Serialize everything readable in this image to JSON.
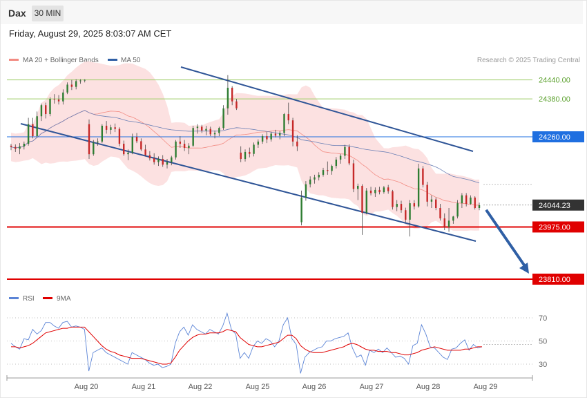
{
  "header": {
    "symbol": "Dax",
    "timeframe": "30 MIN",
    "datetime": "Friday, August 29, 2025 8:03:07 AM CET"
  },
  "legend": {
    "items": [
      {
        "label": "MA 20 + Bollinger Bands",
        "color": "#f28b82"
      },
      {
        "label": "MA 50",
        "color": "#2f5fa5"
      }
    ],
    "copyright": "Research © 2025 Trading Central"
  },
  "rsi_legend": {
    "items": [
      {
        "label": "RSI",
        "color": "#5b84d6"
      },
      {
        "label": "9MA",
        "color": "#e00000"
      }
    ]
  },
  "chart_data": [
    {
      "type": "candlestick",
      "x_ticks": [
        "Aug 20",
        "Aug 21",
        "Aug 22",
        "Aug 25",
        "Aug 26",
        "Aug 27",
        "Aug 28",
        "Aug 29"
      ],
      "price_levels": [
        {
          "value": 24440.0,
          "label": "24440.00",
          "color": "#9ccc65",
          "kind": "thin"
        },
        {
          "value": 24380.0,
          "label": "24380.00",
          "color": "#9ccc65",
          "kind": "thin"
        },
        {
          "value": 24260.0,
          "label": "24260.00",
          "color": "#1f6fe0",
          "kind": "blue"
        },
        {
          "value": 24044.23,
          "label": "24044.23",
          "color": "#333333",
          "kind": "current"
        },
        {
          "value": 23975.0,
          "label": "23975.00",
          "color": "#e00000",
          "kind": "red"
        },
        {
          "value": 23810.0,
          "label": "23810.00",
          "color": "#e00000",
          "kind": "red"
        }
      ],
      "channel": {
        "color": "#2f5597"
      },
      "projection_arrow": {
        "from": 24040,
        "to": 23810,
        "color": "#2f5fa5"
      },
      "candles": [
        [
          24232,
          24238,
          24218,
          24228
        ],
        [
          24228,
          24236,
          24212,
          24222
        ],
        [
          24222,
          24240,
          24205,
          24230
        ],
        [
          24230,
          24245,
          24220,
          24238
        ],
        [
          24238,
          24320,
          24232,
          24300
        ],
        [
          24300,
          24320,
          24255,
          24262
        ],
        [
          24262,
          24340,
          24258,
          24325
        ],
        [
          24325,
          24365,
          24310,
          24360
        ],
        [
          24360,
          24368,
          24318,
          24332
        ],
        [
          24332,
          24385,
          24325,
          24380
        ],
        [
          24380,
          24395,
          24365,
          24378
        ],
        [
          24378,
          24392,
          24362,
          24372
        ],
        [
          24372,
          24410,
          24362,
          24400
        ],
        [
          24400,
          24432,
          24395,
          24425
        ],
        [
          24425,
          24440,
          24408,
          24418
        ],
        [
          24418,
          24442,
          24410,
          24436
        ],
        [
          24436,
          24442,
          24428,
          24438
        ],
        [
          24438,
          24442,
          24432,
          24440
        ],
        [
          24300,
          24315,
          24190,
          24205
        ],
        [
          24205,
          24250,
          24200,
          24242
        ],
        [
          24242,
          24255,
          24232,
          24245
        ],
        [
          24245,
          24300,
          24240,
          24295
        ],
        [
          24295,
          24310,
          24270,
          24282
        ],
        [
          24282,
          24298,
          24268,
          24290
        ],
        [
          24290,
          24302,
          24275,
          24285
        ],
        [
          24285,
          24290,
          24230,
          24238
        ],
        [
          24238,
          24248,
          24200,
          24205
        ],
        [
          24205,
          24220,
          24186,
          24210
        ],
        [
          24210,
          24270,
          24205,
          24260
        ],
        [
          24260,
          24272,
          24240,
          24246
        ],
        [
          24246,
          24255,
          24215,
          24220
        ],
        [
          24220,
          24235,
          24198,
          24202
        ],
        [
          24202,
          24215,
          24185,
          24192
        ],
        [
          24192,
          24208,
          24172,
          24180
        ],
        [
          24180,
          24198,
          24168,
          24190
        ],
        [
          24190,
          24202,
          24165,
          24172
        ],
        [
          24172,
          24190,
          24160,
          24180
        ],
        [
          24180,
          24200,
          24170,
          24195
        ],
        [
          24195,
          24250,
          24188,
          24245
        ],
        [
          24245,
          24262,
          24225,
          24238
        ],
        [
          24238,
          24250,
          24215,
          24225
        ],
        [
          24225,
          24240,
          24205,
          24232
        ],
        [
          24232,
          24295,
          24228,
          24288
        ],
        [
          24288,
          24300,
          24270,
          24292
        ],
        [
          24292,
          24298,
          24272,
          24280
        ],
        [
          24280,
          24295,
          24265,
          24285
        ],
        [
          24285,
          24292,
          24262,
          24268
        ],
        [
          24268,
          24280,
          24255,
          24272
        ],
        [
          24272,
          24292,
          24262,
          24288
        ],
        [
          24288,
          24360,
          24282,
          24350
        ],
        [
          24350,
          24455,
          24330,
          24415
        ],
        [
          24415,
          24420,
          24360,
          24372
        ],
        [
          24372,
          24380,
          24345,
          24350
        ],
        [
          24210,
          24230,
          24180,
          24190
        ],
        [
          24190,
          24220,
          24182,
          24212
        ],
        [
          24212,
          24226,
          24195,
          24206
        ],
        [
          24206,
          24242,
          24198,
          24235
        ],
        [
          24235,
          24252,
          24225,
          24245
        ],
        [
          24245,
          24268,
          24238,
          24262
        ],
        [
          24262,
          24275,
          24240,
          24252
        ],
        [
          24252,
          24276,
          24245,
          24270
        ],
        [
          24270,
          24282,
          24258,
          24264
        ],
        [
          24264,
          24278,
          24252,
          24272
        ],
        [
          24272,
          24335,
          24262,
          24332
        ],
        [
          24332,
          24368,
          24300,
          24312
        ],
        [
          24312,
          24320,
          24230,
          24245
        ],
        [
          24245,
          24265,
          24215,
          24230
        ],
        [
          23990,
          24090,
          23980,
          24068
        ],
        [
          24068,
          24120,
          24058,
          24110
        ],
        [
          24110,
          24135,
          24100,
          24125
        ],
        [
          24125,
          24140,
          24112,
          24132
        ],
        [
          24132,
          24148,
          24122,
          24140
        ],
        [
          24140,
          24162,
          24134,
          24155
        ],
        [
          24155,
          24182,
          24140,
          24152
        ],
        [
          24152,
          24172,
          24140,
          24168
        ],
        [
          24168,
          24196,
          24160,
          24188
        ],
        [
          24188,
          24206,
          24175,
          24200
        ],
        [
          24200,
          24235,
          24190,
          24228
        ],
        [
          24228,
          24236,
          24170,
          24176
        ],
        [
          24176,
          24188,
          24085,
          24095
        ],
        [
          24095,
          24112,
          24060,
          24105
        ],
        [
          24105,
          24110,
          23950,
          24020
        ],
        [
          24020,
          24098,
          24015,
          24090
        ],
        [
          24090,
          24102,
          24075,
          24082
        ],
        [
          24082,
          24100,
          24070,
          24092
        ],
        [
          24092,
          24102,
          24078,
          24085
        ],
        [
          24085,
          24105,
          24080,
          24100
        ],
        [
          24100,
          24108,
          24080,
          24088
        ],
        [
          24088,
          24092,
          24030,
          24038
        ],
        [
          24038,
          24060,
          24025,
          24048
        ],
        [
          24048,
          24058,
          24020,
          24028
        ],
        [
          24028,
          24036,
          23990,
          23998
        ],
        [
          23998,
          24060,
          23945,
          24050
        ],
        [
          24050,
          24060,
          24030,
          24040
        ],
        [
          24040,
          24175,
          24036,
          24160
        ],
        [
          24160,
          24168,
          24100,
          24108
        ],
        [
          24108,
          24118,
          24040,
          24055
        ],
        [
          24055,
          24075,
          24035,
          24062
        ],
        [
          24062,
          24068,
          24028,
          24035
        ],
        [
          24035,
          24048,
          23995,
          24002
        ],
        [
          24002,
          24018,
          23965,
          23975
        ],
        [
          23975,
          24035,
          23960,
          23995
        ],
        [
          23995,
          24010,
          23985,
          24008
        ],
        [
          24008,
          24060,
          24002,
          24050
        ],
        [
          24050,
          24082,
          24035,
          24075
        ],
        [
          24075,
          24082,
          24040,
          24048
        ],
        [
          24048,
          24075,
          24045,
          24068
        ],
        [
          24068,
          24072,
          24030,
          24035
        ],
        [
          24035,
          24052,
          24028,
          24044
        ]
      ]
    },
    {
      "type": "line",
      "x_ticks": [
        "Aug 20",
        "Aug 21",
        "Aug 22",
        "Aug 25",
        "Aug 26",
        "Aug 27",
        "Aug 28",
        "Aug 29"
      ],
      "y_ticks": [
        70,
        50,
        30
      ],
      "ylim": [
        17,
        80
      ],
      "grid": "dotted at 30, 50, 70",
      "series": [
        {
          "name": "RSI",
          "color": "#5b84d6",
          "values": [
            48,
            45,
            43,
            52,
            51,
            60,
            56,
            59,
            66,
            66,
            63,
            61,
            66,
            67,
            62,
            63,
            62,
            60,
            24,
            40,
            42,
            44,
            40,
            38,
            36,
            34,
            32,
            30,
            40,
            38,
            36,
            34,
            31,
            29,
            30,
            27,
            28,
            30,
            48,
            58,
            62,
            55,
            64,
            60,
            58,
            56,
            60,
            58,
            56,
            63,
            74,
            60,
            56,
            35,
            40,
            35,
            45,
            50,
            48,
            52,
            50,
            45,
            50,
            64,
            70,
            52,
            47,
            22,
            36,
            40,
            42,
            44,
            45,
            50,
            50,
            52,
            53,
            54,
            57,
            44,
            36,
            38,
            29,
            42,
            40,
            43,
            40,
            44,
            40,
            36,
            37,
            35,
            30,
            46,
            48,
            64,
            56,
            45,
            44,
            40,
            36,
            34,
            43,
            44,
            48,
            51,
            42,
            47,
            44,
            45
          ]
        },
        {
          "name": "9MA",
          "color": "#e00000",
          "values": [
            45,
            45,
            44,
            45,
            46,
            48,
            51,
            54,
            57,
            58,
            59,
            60,
            61,
            61,
            62,
            62,
            62,
            62,
            58,
            54,
            50,
            46,
            43,
            41,
            40,
            38,
            37,
            36,
            35,
            35,
            35,
            34,
            33,
            32,
            31,
            30,
            30,
            31,
            36,
            42,
            46,
            50,
            53,
            55,
            56,
            56,
            57,
            57,
            57,
            58,
            60,
            59,
            58,
            53,
            50,
            47,
            46,
            45,
            45,
            46,
            47,
            48,
            49,
            52,
            55,
            55,
            52,
            46,
            43,
            41,
            40,
            40,
            40,
            41,
            42,
            43,
            44,
            45,
            47,
            48,
            47,
            45,
            43,
            42,
            42,
            41,
            41,
            41,
            40,
            40,
            39,
            38,
            38,
            39,
            40,
            42,
            43,
            44,
            45,
            44,
            43,
            42,
            42,
            42,
            42,
            43,
            43,
            44,
            45,
            45
          ]
        }
      ]
    }
  ]
}
